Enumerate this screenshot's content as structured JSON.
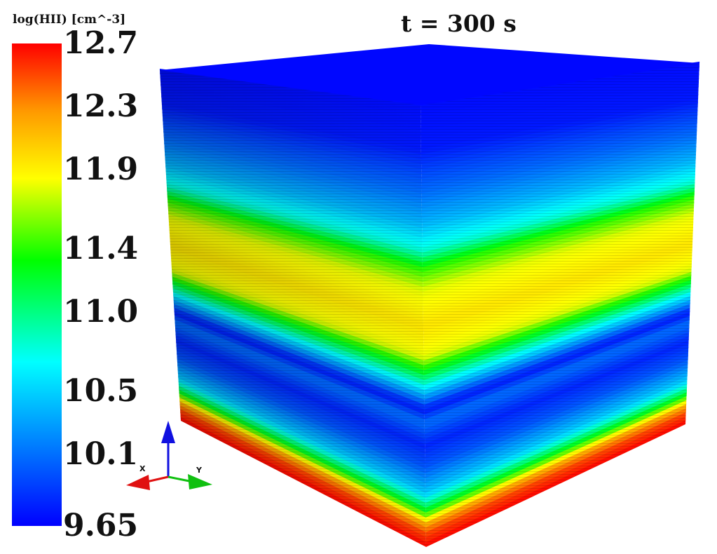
{
  "colorbar": {
    "title": "log(HII) [cm^-3]",
    "min": 9.65,
    "max": 12.7,
    "ticks": [
      {
        "label": "12.7",
        "value": 12.7
      },
      {
        "label": "12.3",
        "value": 12.3
      },
      {
        "label": "11.9",
        "value": 11.9
      },
      {
        "label": "11.4",
        "value": 11.4
      },
      {
        "label": "11.0",
        "value": 11.0
      },
      {
        "label": "10.5",
        "value": 10.5
      },
      {
        "label": "10.1",
        "value": 10.1
      },
      {
        "label": "9.65",
        "value": 9.65
      }
    ]
  },
  "time_label": "t = 300 s",
  "axes": {
    "x": "X",
    "y": "Y"
  },
  "colors": {
    "axis_x": "#e01010",
    "axis_y": "#10c010",
    "axis_z": "#1010e0"
  },
  "profile": [
    {
      "height": 0.0,
      "value": 12.7
    },
    {
      "height": 0.03,
      "value": 12.5
    },
    {
      "height": 0.05,
      "value": 12.2
    },
    {
      "height": 0.08,
      "value": 11.3
    },
    {
      "height": 0.12,
      "value": 10.5
    },
    {
      "height": 0.18,
      "value": 10.0
    },
    {
      "height": 0.23,
      "value": 9.8
    },
    {
      "height": 0.28,
      "value": 10.1
    },
    {
      "height": 0.31,
      "value": 9.75
    },
    {
      "height": 0.34,
      "value": 10.3
    },
    {
      "height": 0.38,
      "value": 11.0
    },
    {
      "height": 0.43,
      "value": 11.8
    },
    {
      "height": 0.5,
      "value": 11.95
    },
    {
      "height": 0.58,
      "value": 11.8
    },
    {
      "height": 0.63,
      "value": 11.4
    },
    {
      "height": 0.67,
      "value": 10.8
    },
    {
      "height": 0.73,
      "value": 10.4
    },
    {
      "height": 0.8,
      "value": 10.1
    },
    {
      "height": 0.86,
      "value": 9.9
    },
    {
      "height": 0.9,
      "value": 9.75
    },
    {
      "height": 1.0,
      "value": 9.7
    }
  ],
  "top_value": 9.68
}
